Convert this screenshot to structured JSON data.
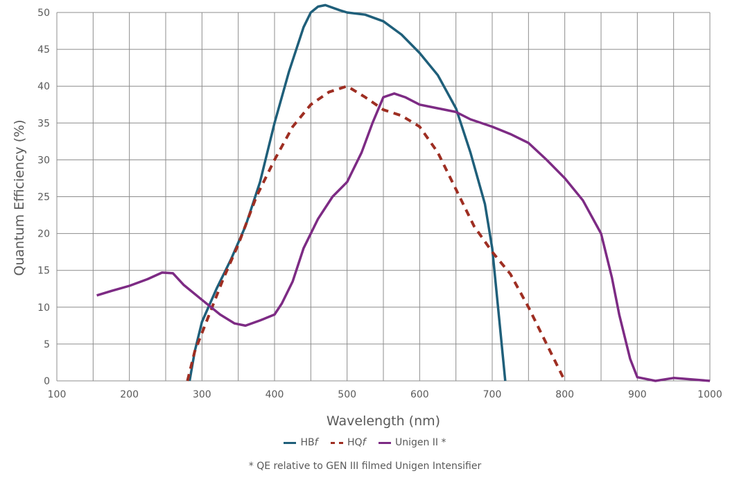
{
  "chart_data": {
    "type": "line",
    "xlabel": "Wavelength (nm)",
    "ylabel": "Quantum Efficiency  (%)",
    "xlim": [
      100,
      1000
    ],
    "ylim": [
      0,
      50
    ],
    "xticks": [
      100,
      200,
      300,
      400,
      500,
      600,
      700,
      800,
      900,
      1000
    ],
    "yticks": [
      0,
      5,
      10,
      15,
      20,
      25,
      30,
      35,
      40,
      45,
      50
    ],
    "x_minor_step": 50,
    "grid": true,
    "legend_position": "bottom",
    "footnote": "* QE relative to GEN III filmed Unigen Intensifier",
    "series": [
      {
        "name": "HBf",
        "color": "#1f5f7a",
        "dash": "solid",
        "points": [
          [
            283,
            0
          ],
          [
            290,
            4
          ],
          [
            300,
            8
          ],
          [
            320,
            12.5
          ],
          [
            340,
            16.5
          ],
          [
            360,
            21
          ],
          [
            380,
            27
          ],
          [
            400,
            35
          ],
          [
            420,
            42
          ],
          [
            440,
            48
          ],
          [
            450,
            50
          ],
          [
            460,
            50.8
          ],
          [
            470,
            51
          ],
          [
            490,
            50.3
          ],
          [
            500,
            50
          ],
          [
            525,
            49.7
          ],
          [
            550,
            48.8
          ],
          [
            575,
            47
          ],
          [
            600,
            44.5
          ],
          [
            625,
            41.5
          ],
          [
            650,
            37
          ],
          [
            670,
            31
          ],
          [
            690,
            24
          ],
          [
            700,
            18
          ],
          [
            710,
            8
          ],
          [
            718,
            0
          ]
        ]
      },
      {
        "name": "HQf",
        "color": "#9e2e22",
        "dash": "dashed",
        "points": [
          [
            280,
            0
          ],
          [
            290,
            4
          ],
          [
            310,
            9
          ],
          [
            330,
            14
          ],
          [
            350,
            18.5
          ],
          [
            375,
            25
          ],
          [
            400,
            30
          ],
          [
            425,
            34.5
          ],
          [
            450,
            37.5
          ],
          [
            475,
            39.2
          ],
          [
            500,
            40
          ],
          [
            525,
            38.5
          ],
          [
            550,
            36.8
          ],
          [
            575,
            36
          ],
          [
            600,
            34.5
          ],
          [
            625,
            31
          ],
          [
            650,
            26
          ],
          [
            675,
            21
          ],
          [
            700,
            17.5
          ],
          [
            725,
            14.5
          ],
          [
            750,
            10
          ],
          [
            775,
            5
          ],
          [
            800,
            0
          ]
        ]
      },
      {
        "name": "Unigen II *",
        "color": "#7d2b84",
        "dash": "solid",
        "points": [
          [
            155,
            11.6
          ],
          [
            175,
            12.2
          ],
          [
            200,
            12.9
          ],
          [
            225,
            13.8
          ],
          [
            245,
            14.7
          ],
          [
            260,
            14.6
          ],
          [
            275,
            13
          ],
          [
            300,
            11
          ],
          [
            325,
            9
          ],
          [
            345,
            7.8
          ],
          [
            360,
            7.5
          ],
          [
            380,
            8.2
          ],
          [
            400,
            9
          ],
          [
            410,
            10.5
          ],
          [
            425,
            13.5
          ],
          [
            440,
            18
          ],
          [
            460,
            22
          ],
          [
            480,
            25
          ],
          [
            500,
            27
          ],
          [
            520,
            31
          ],
          [
            535,
            35
          ],
          [
            550,
            38.5
          ],
          [
            565,
            39
          ],
          [
            580,
            38.5
          ],
          [
            600,
            37.5
          ],
          [
            625,
            37
          ],
          [
            650,
            36.5
          ],
          [
            670,
            35.5
          ],
          [
            700,
            34.5
          ],
          [
            725,
            33.5
          ],
          [
            750,
            32.3
          ],
          [
            775,
            30
          ],
          [
            800,
            27.5
          ],
          [
            825,
            24.5
          ],
          [
            850,
            20
          ],
          [
            865,
            14
          ],
          [
            875,
            9
          ],
          [
            890,
            3
          ],
          [
            900,
            0.5
          ],
          [
            925,
            0
          ],
          [
            950,
            0.4
          ],
          [
            975,
            0.2
          ],
          [
            1000,
            0
          ]
        ]
      }
    ]
  },
  "legend": {
    "items": [
      {
        "name": "HB",
        "suffix": "f",
        "color": "#1f5f7a",
        "dash": "solid"
      },
      {
        "name": "HQ",
        "suffix": "f",
        "color": "#9e2e22",
        "dash": "dashed"
      },
      {
        "name": "Unigen II *",
        "suffix": "",
        "color": "#7d2b84",
        "dash": "solid"
      }
    ]
  }
}
